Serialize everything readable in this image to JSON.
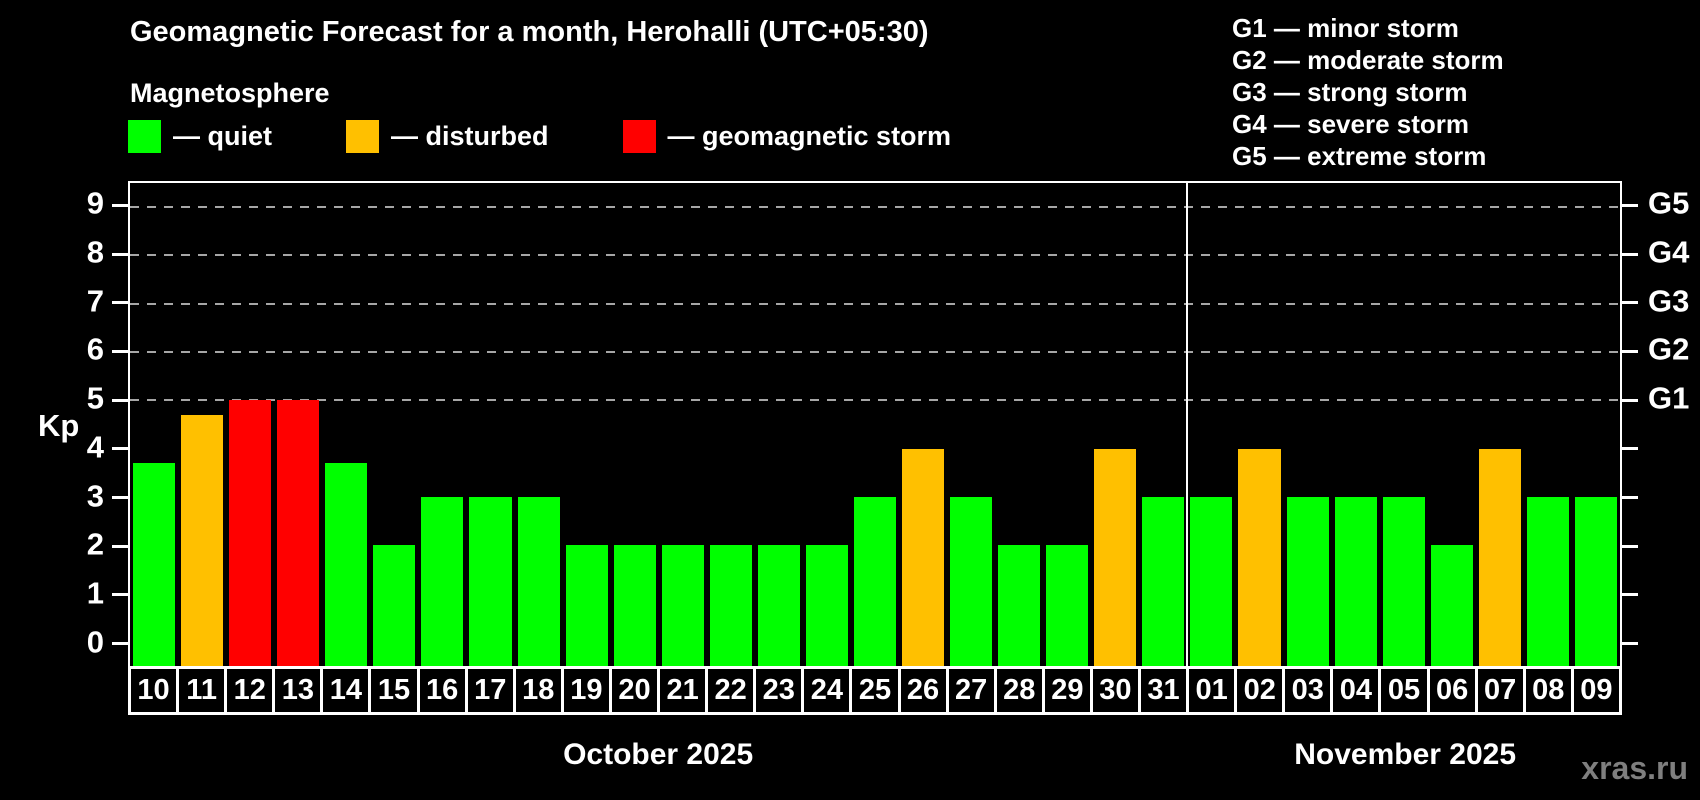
{
  "title": "Geomagnetic Forecast for a month, Herohalli (UTC+05:30)",
  "subtitle": "Magnetosphere",
  "bar_legend": {
    "items": [
      {
        "status": "quiet",
        "label": "— quiet",
        "color": "#00ff00"
      },
      {
        "status": "disturbed",
        "label": "— disturbed",
        "color": "#ffc000"
      },
      {
        "status": "storm",
        "label": "— geomagnetic storm",
        "color": "#ff0000"
      }
    ]
  },
  "storm_scale_legend": {
    "lines": [
      "G1 — minor storm",
      "G2 — moderate storm",
      "G3 — strong storm",
      "G4 — severe storm",
      "G5 — extreme storm"
    ]
  },
  "y_axis": {
    "title": "Kp",
    "tick_labels": [
      "0",
      "1",
      "2",
      "3",
      "4",
      "5",
      "6",
      "7",
      "8",
      "9"
    ],
    "min": -0.5,
    "max": 9.5
  },
  "right_axis": {
    "labels": [
      {
        "text": "G1",
        "kp": 5
      },
      {
        "text": "G2",
        "kp": 6
      },
      {
        "text": "G3",
        "kp": 7
      },
      {
        "text": "G4",
        "kp": 8
      },
      {
        "text": "G5",
        "kp": 9
      }
    ]
  },
  "watermark": "xras.ru",
  "chart_data": {
    "type": "bar",
    "title": "Geomagnetic Forecast for a month, Herohalli (UTC+05:30)",
    "ylabel": "Kp",
    "ylim": [
      -0.5,
      9.5
    ],
    "grid": "dashed horizontal lines at Kp 5-9 only",
    "gridlines_at_kp": [
      5,
      6,
      7,
      8,
      9
    ],
    "legend_position": "top-left",
    "status_colors": {
      "quiet": "#00ff00",
      "disturbed": "#ffc000",
      "storm": "#ff0000"
    },
    "months": [
      {
        "label": "October 2025",
        "days": [
          "10",
          "11",
          "12",
          "13",
          "14",
          "15",
          "16",
          "17",
          "18",
          "19",
          "20",
          "21",
          "22",
          "23",
          "24",
          "25",
          "26",
          "27",
          "28",
          "29",
          "30",
          "31"
        ]
      },
      {
        "label": "November 2025",
        "days": [
          "01",
          "02",
          "03",
          "04",
          "05",
          "06",
          "07",
          "08",
          "09"
        ]
      }
    ],
    "categories": [
      "10",
      "11",
      "12",
      "13",
      "14",
      "15",
      "16",
      "17",
      "18",
      "19",
      "20",
      "21",
      "22",
      "23",
      "24",
      "25",
      "26",
      "27",
      "28",
      "29",
      "30",
      "31",
      "01",
      "02",
      "03",
      "04",
      "05",
      "06",
      "07",
      "08",
      "09"
    ],
    "values": [
      3.7,
      4.7,
      5,
      5,
      3.7,
      2,
      3,
      3,
      3,
      2,
      2,
      2,
      2,
      2,
      2,
      3,
      4,
      3,
      2,
      2,
      4,
      3,
      3,
      4,
      3,
      3,
      3,
      2,
      4,
      3,
      3
    ],
    "statuses": [
      "quiet",
      "disturbed",
      "storm",
      "storm",
      "quiet",
      "quiet",
      "quiet",
      "quiet",
      "quiet",
      "quiet",
      "quiet",
      "quiet",
      "quiet",
      "quiet",
      "quiet",
      "quiet",
      "disturbed",
      "quiet",
      "quiet",
      "quiet",
      "disturbed",
      "quiet",
      "quiet",
      "disturbed",
      "quiet",
      "quiet",
      "quiet",
      "quiet",
      "disturbed",
      "quiet",
      "quiet"
    ]
  }
}
